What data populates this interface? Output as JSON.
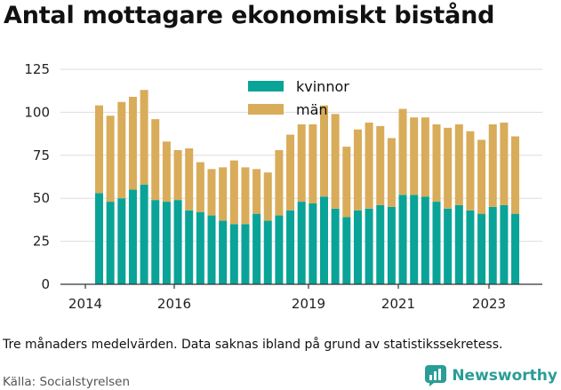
{
  "title": "Antal mottagare ekonomiskt bistånd",
  "caption": "Tre månaders medelvärden. Data saknas ibland på grund av statistikssekretess.",
  "source": "Källa: Socialstyrelsen",
  "brand": {
    "name": "Newsworthy",
    "color": "#2a9d97",
    "icon": "newsworthy-logo-icon"
  },
  "colors": {
    "kvinnor": "#0aa398",
    "man": "#d9ac5a",
    "grid": "#dddddd",
    "axis": "#333333"
  },
  "chart_data": {
    "type": "bar",
    "stacked": true,
    "legend_position": "top-center",
    "grid": true,
    "ylim": [
      0,
      125
    ],
    "yticks": [
      "0",
      "25",
      "50",
      "75",
      "100",
      "125"
    ],
    "xticks": [
      "2014",
      "2016",
      "2019",
      "2021",
      "2023"
    ],
    "series": [
      {
        "name": "kvinnor",
        "values": [
          53,
          48,
          50,
          55,
          58,
          49,
          48,
          49,
          43,
          42,
          40,
          37,
          35,
          35,
          41,
          37,
          40,
          43,
          48,
          47,
          51,
          44,
          39,
          43,
          44,
          46,
          45,
          52,
          52,
          51,
          48,
          44,
          46,
          43,
          41,
          45,
          46,
          41
        ]
      },
      {
        "name": "män",
        "values": [
          51,
          50,
          56,
          54,
          55,
          47,
          35,
          29,
          36,
          29,
          27,
          31,
          37,
          33,
          26,
          28,
          38,
          44,
          45,
          46,
          53,
          55,
          41,
          47,
          50,
          46,
          40,
          50,
          45,
          46,
          45,
          47,
          47,
          46,
          43,
          48,
          48,
          45
        ]
      }
    ]
  }
}
